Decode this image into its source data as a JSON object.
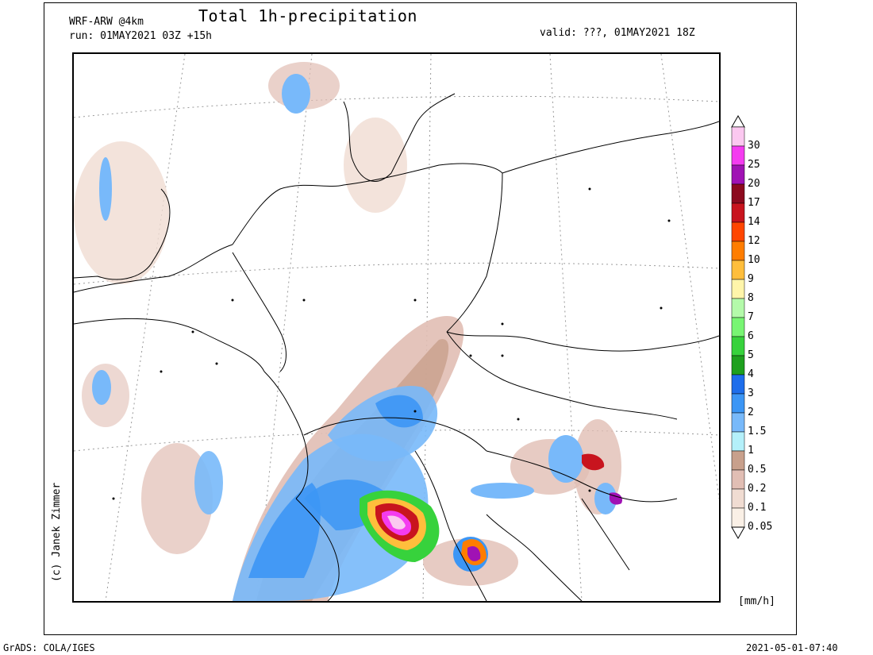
{
  "header": {
    "model": "WRF-ARW @4km",
    "run": "run: 01MAY2021 03Z +15h",
    "title": "Total 1h-precipitation",
    "valid": "valid: ???, 01MAY2021 18Z"
  },
  "credit": "(c) Janek Zimmer",
  "footer": {
    "left": "GrADS: COLA/IGES",
    "right": "2021-05-01-07:40"
  },
  "legend": {
    "unit": "[mm/h]",
    "levels": [
      {
        "label": "30",
        "color": "#fbc8f0"
      },
      {
        "label": "25",
        "color": "#f43cf0"
      },
      {
        "label": "20",
        "color": "#a012b4"
      },
      {
        "label": "17",
        "color": "#8c0a1e"
      },
      {
        "label": "14",
        "color": "#c8141e"
      },
      {
        "label": "12",
        "color": "#ff4600"
      },
      {
        "label": "10",
        "color": "#ff7d00"
      },
      {
        "label": "9",
        "color": "#ffbe3c"
      },
      {
        "label": "8",
        "color": "#fff5aa"
      },
      {
        "label": "7",
        "color": "#b4faaa"
      },
      {
        "label": "6",
        "color": "#78f573"
      },
      {
        "label": "5",
        "color": "#37d23c"
      },
      {
        "label": "4",
        "color": "#1ea01e"
      },
      {
        "label": "3",
        "color": "#1e6eeb"
      },
      {
        "label": "2",
        "color": "#3c96f5"
      },
      {
        "label": "1.5",
        "color": "#78b9fa"
      },
      {
        "label": "1",
        "color": "#b4f0fa"
      },
      {
        "label": "0.5",
        "color": "#c8a08c"
      },
      {
        "label": "0.2",
        "color": "#e1beb4"
      },
      {
        "label": "0.1",
        "color": "#f0dcd2"
      },
      {
        "label": "0.05",
        "color": "#faf0e6"
      }
    ]
  }
}
